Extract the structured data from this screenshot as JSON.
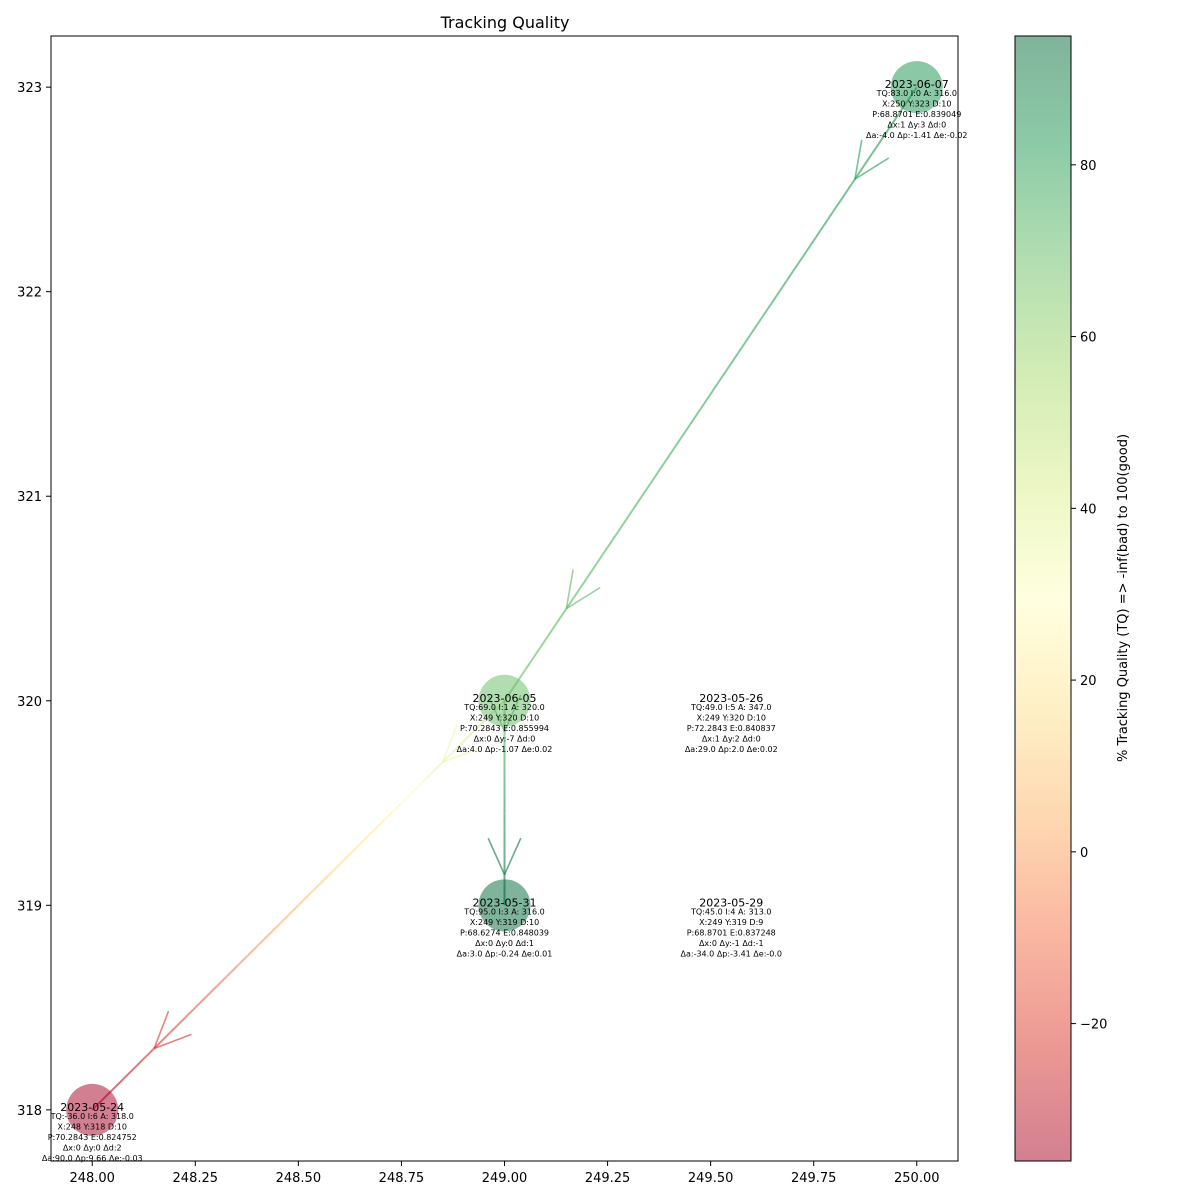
{
  "chart_data": {
    "type": "scatter",
    "title": "Tracking Quality",
    "xlim": [
      247.9,
      250.1
    ],
    "ylim": [
      317.75,
      323.25
    ],
    "x_ticks": [
      248.0,
      248.25,
      248.5,
      248.75,
      249.0,
      249.25,
      249.5,
      249.75,
      250.0
    ],
    "x_tick_labels": [
      "248.00",
      "248.25",
      "248.50",
      "248.75",
      "249.00",
      "249.25",
      "249.50",
      "249.75",
      "250.00"
    ],
    "y_ticks": [
      318,
      319,
      320,
      321,
      322,
      323
    ],
    "y_tick_labels": [
      "318",
      "319",
      "320",
      "321",
      "322",
      "323"
    ],
    "grid": false,
    "colorbar": {
      "label": "% Tracking Quality (TQ) => -inf(bad) to 100(good)",
      "range": [
        -36,
        95
      ],
      "ticks": [
        -20,
        0,
        20,
        40,
        60,
        80
      ],
      "tick_labels": [
        "−20",
        "0",
        "20",
        "40",
        "60",
        "80"
      ]
    },
    "points": [
      {
        "date": "2023-05-24",
        "x": 248,
        "y": 318,
        "tq": -36,
        "marker": true,
        "lines": [
          "TQ:-36.0 I:6 A: 318.0",
          "X:248 Y:318 D:10",
          "P:70.2843 E:0.824752",
          "Δx:0 Δy:0 Δd:2",
          "Δa:90.0 Δp:9.66 Δe:-0.03"
        ]
      },
      {
        "date": "2023-05-26",
        "x": 249,
        "y": 320,
        "tq": 49,
        "marker": false,
        "label_dx": 0.55,
        "lines": [
          "TQ:49.0 I:5 A: 347.0",
          "X:249 Y:320 D:10",
          "P:72.2843 E:0.840837",
          "Δx:1 Δy:2 Δd:0",
          "Δa:29.0 Δp:2.0 Δe:0.02"
        ]
      },
      {
        "date": "2023-05-29",
        "x": 249,
        "y": 319,
        "tq": 45,
        "marker": false,
        "label_dx": 0.55,
        "lines": [
          "TQ:45.0 I:4 A: 313.0",
          "X:249 Y:319 D:9",
          "P:68.8701 E:0.837248",
          "Δx:0 Δy:-1 Δd:-1",
          "Δa:-34.0 Δp:-3.41 Δe:-0.0"
        ]
      },
      {
        "date": "2023-05-31",
        "x": 249,
        "y": 319,
        "tq": 95,
        "marker": true,
        "lines": [
          "TQ:95.0 I:3 A: 316.0",
          "X:249 Y:319 D:10",
          "P:68.6274 E:0.848039",
          "Δx:0 Δy:0 Δd:1",
          "Δa:3.0 Δp:-0.24 Δe:0.01"
        ]
      },
      {
        "date": "2023-06-05",
        "x": 249,
        "y": 320,
        "tq": 69,
        "marker": true,
        "lines": [
          "TQ:69.0 I:1 A: 320.0",
          "X:249 Y:320 D:10",
          "P:70.2843 E:0.855994",
          "Δx:0 Δy:-7 Δd:0",
          "Δa:4.0 Δp:-1.07 Δe:0.02"
        ]
      },
      {
        "date": "2023-06-07",
        "x": 250,
        "y": 323,
        "tq": 83,
        "marker": true,
        "lines": [
          "TQ:83.0 I:0 A: 316.0",
          "X:250 Y:323 D:10",
          "P:68.8701 E:0.839049",
          "Δx:1 Δy:3 Δd:0",
          "Δa:-4.0 Δp:-1.41 Δe:-0.02"
        ]
      }
    ],
    "paths": [
      {
        "from": [
          250,
          323
        ],
        "to": [
          249,
          320
        ],
        "tq_from": 83,
        "tq_to": 69
      },
      {
        "from": [
          249,
          320
        ],
        "to": [
          248,
          318
        ],
        "tq_from": 49,
        "tq_to": -36
      },
      {
        "from": [
          249,
          320
        ],
        "to": [
          249,
          319
        ],
        "tq_from": 69,
        "tq_to": 95
      }
    ],
    "colormap": "red-yellow-green",
    "marker_alpha": 0.5
  }
}
